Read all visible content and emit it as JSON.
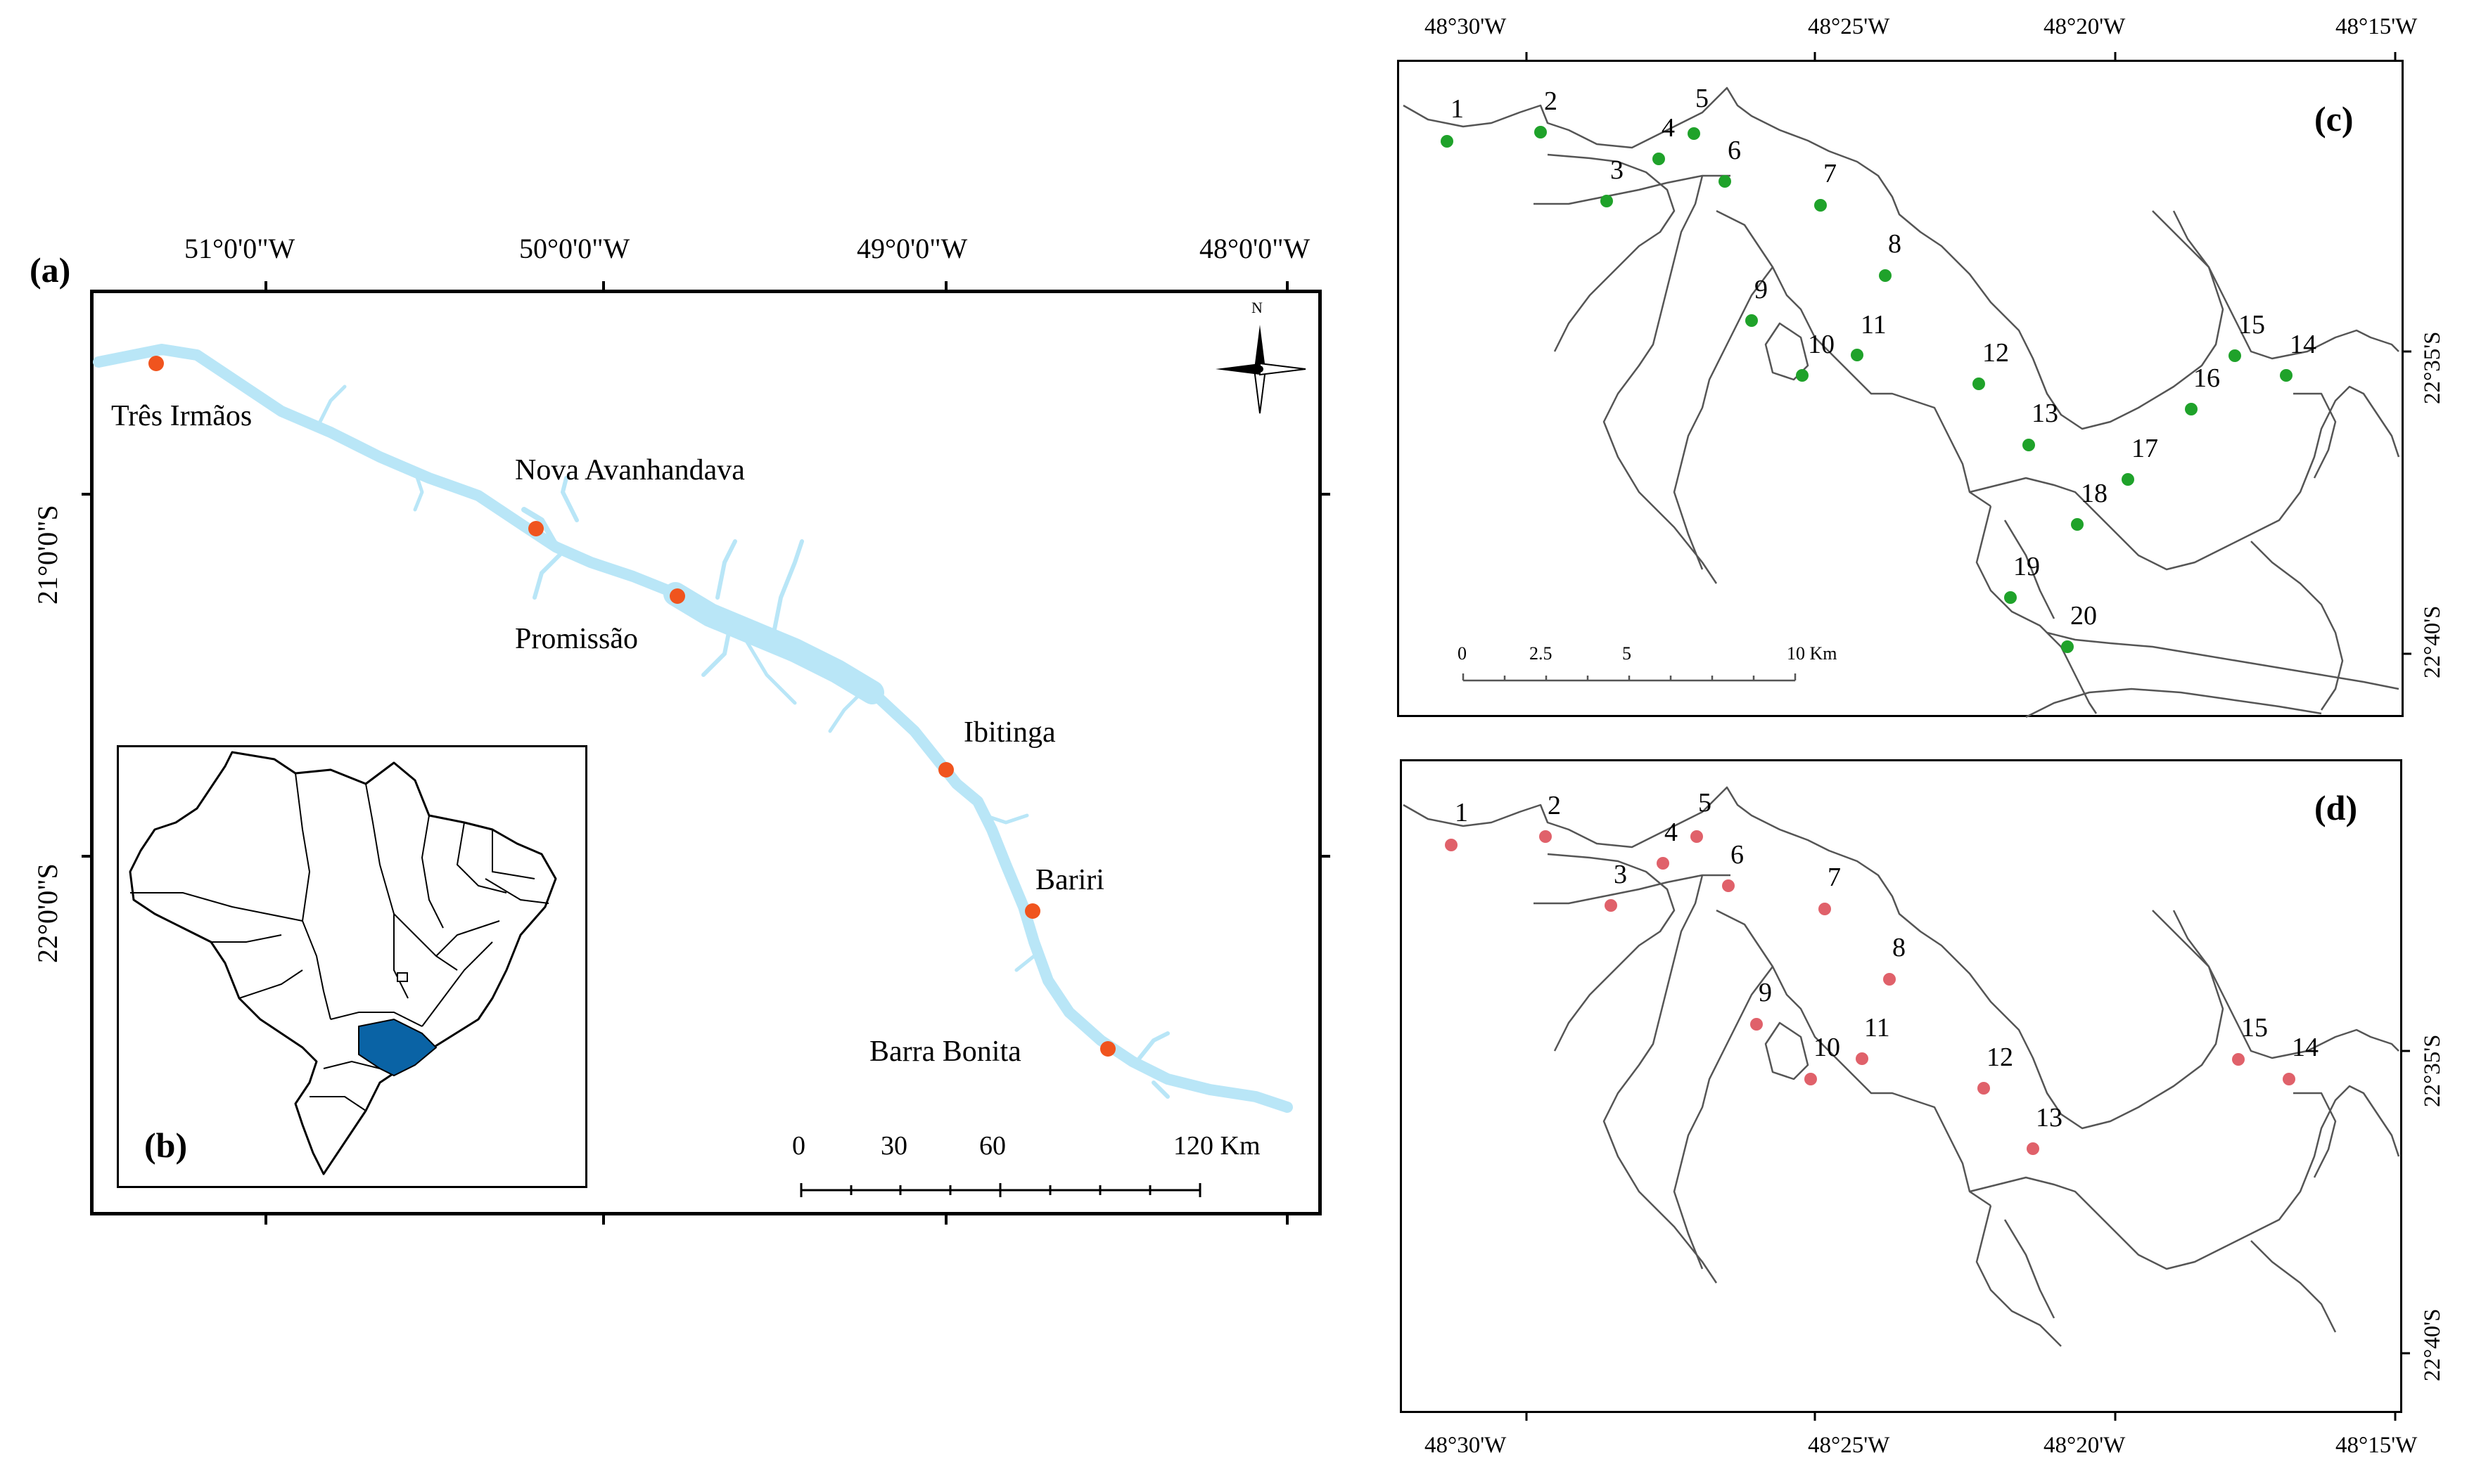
{
  "panel_a": {
    "label": "(a)",
    "lon_ticks": [
      "51°0'0\"W",
      "50°0'0\"W",
      "49°0'0\"W",
      "48°0'0\"W"
    ],
    "lat_ticks": [
      "21°0'0\"S",
      "22°0'0\"S"
    ],
    "reservoirs": [
      "Três Irmãos",
      "Nova Avanhandava",
      "Promissão",
      "Ibitinga",
      "Bariri",
      "Barra Bonita"
    ],
    "north_label": "N",
    "scale": {
      "ticks": [
        "0",
        "30",
        "60",
        "120 Km"
      ]
    },
    "colors": {
      "river": "#b9e6f7",
      "dam": "#f0541e"
    }
  },
  "panel_b": {
    "label": "(b)",
    "colors": {
      "highlight_state": "#0a63a5"
    }
  },
  "panel_c": {
    "label": "(c)",
    "lon_ticks": [
      "48°30'W",
      "48°25'W",
      "48°20'W",
      "48°15'W"
    ],
    "lat_ticks": [
      "22°35'S",
      "22°40'S"
    ],
    "sites": [
      "1",
      "2",
      "3",
      "4",
      "5",
      "6",
      "7",
      "8",
      "9",
      "10",
      "11",
      "12",
      "13",
      "14",
      "15",
      "16",
      "17",
      "18",
      "19",
      "20"
    ],
    "scale": {
      "ticks": [
        "0",
        "2.5",
        "5",
        "10 Km"
      ]
    },
    "colors": {
      "point": "#1fa22a"
    }
  },
  "panel_d": {
    "label": "(d)",
    "lon_ticks": [
      "48°30'W",
      "48°25'W",
      "48°20'W",
      "48°15'W"
    ],
    "lat_ticks": [
      "22°35'S",
      "22°40'S"
    ],
    "sites": [
      "1",
      "2",
      "3",
      "4",
      "5",
      "6",
      "7",
      "8",
      "9",
      "10",
      "11",
      "12",
      "13",
      "14",
      "15"
    ],
    "colors": {
      "point": "#e0616a"
    }
  }
}
